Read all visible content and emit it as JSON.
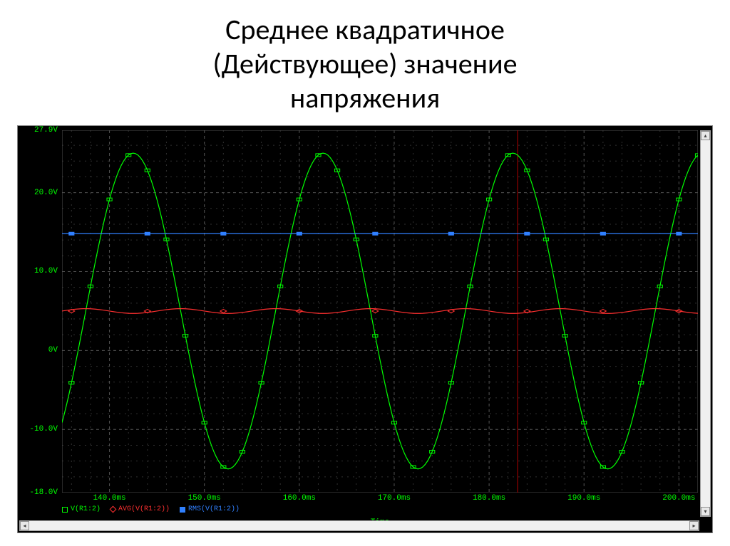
{
  "title_line1": "Среднее квадратичное",
  "title_line2": "(Действующее)  значение",
  "title_line3": "напряжения",
  "chart": {
    "type": "line",
    "background_color": "#000000",
    "grid_major_color": "#505050",
    "grid_minor_color": "#303030",
    "axis_color": "#00ff00",
    "axis_fontsize": 11,
    "axis_font": "Courier New",
    "xlabel": "Time",
    "xlim": [
      135,
      202
    ],
    "xticks": [
      140,
      150,
      160,
      170,
      180,
      190,
      200
    ],
    "xtick_labels": [
      "140.0ms",
      "150.0ms",
      "160.0ms",
      "170.0ms",
      "180.0ms",
      "190.0ms",
      "200.0ms"
    ],
    "x_minor_step": 2,
    "ylim": [
      -18,
      27.9
    ],
    "yticks": [
      -18,
      -10,
      0,
      10,
      20,
      27.9
    ],
    "ytick_labels": [
      "-18.0V",
      "-10.0V",
      "0V",
      "10.0V",
      "20.0V",
      "27.9V"
    ],
    "y_minor_step": 2,
    "cursor_x": 183,
    "cursor_color": "#b00000",
    "series": [
      {
        "name": "V(R1:2)",
        "color": "#00ff00",
        "marker": "square",
        "line_width": 1.2,
        "type": "sine",
        "amplitude": 20,
        "offset": 5,
        "period": 20,
        "phase_x0": 137.5
      },
      {
        "name": "AVG(V(R1:2))",
        "color": "#ff3030",
        "marker": "diamond",
        "line_width": 1.2,
        "type": "flat_wavy",
        "value": 5.0,
        "wave_amp": 0.6
      },
      {
        "name": "RMS(V(R1:2))",
        "color": "#3080ff",
        "marker": "square-filled",
        "line_width": 1.2,
        "type": "flat",
        "value": 14.8
      }
    ],
    "legend": {
      "position": "bottom-left",
      "fontsize": 10
    }
  }
}
